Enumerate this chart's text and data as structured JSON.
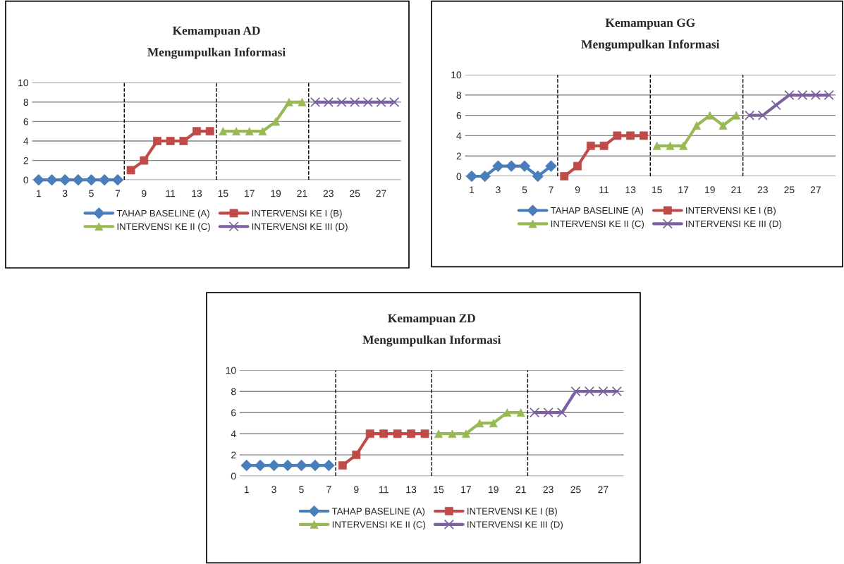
{
  "chart_data": [
    {
      "type": "line",
      "title": "Kemampuan AD",
      "subtitle": "Mengumpulkan Informasi",
      "x": [
        1,
        2,
        3,
        4,
        5,
        6,
        7,
        8,
        9,
        10,
        11,
        12,
        13,
        14,
        15,
        16,
        17,
        18,
        19,
        20,
        21,
        22,
        23,
        24,
        25,
        26,
        27,
        28
      ],
      "xlim": [
        0.5,
        28.5
      ],
      "xticks": [
        1,
        3,
        5,
        7,
        9,
        11,
        13,
        15,
        17,
        19,
        21,
        23,
        25,
        27
      ],
      "ylim": [
        0,
        10
      ],
      "yticks": [
        0,
        2,
        4,
        6,
        8,
        10
      ],
      "grid": "y",
      "legend": "bottom",
      "ref_lines": [
        {
          "axis": "x",
          "value": 7.5,
          "color": "#000000",
          "line_style": "dashed"
        },
        {
          "axis": "x",
          "value": 14.5,
          "color": "#000000",
          "line_style": "dashed"
        },
        {
          "axis": "x",
          "value": 21.5,
          "color": "#000000",
          "line_style": "dashed"
        }
      ],
      "series": [
        {
          "name": "TAHAP BASELINE (A)",
          "color": "#4a7ebb",
          "marker": "diamond",
          "values": [
            0,
            0,
            0,
            0,
            0,
            0,
            0,
            null,
            null,
            null,
            null,
            null,
            null,
            null,
            null,
            null,
            null,
            null,
            null,
            null,
            null,
            null,
            null,
            null,
            null,
            null,
            null,
            null
          ]
        },
        {
          "name": "INTERVENSI KE I (B)",
          "color": "#be4b48",
          "marker": "square",
          "values": [
            null,
            null,
            null,
            null,
            null,
            null,
            null,
            1,
            2,
            4,
            4,
            4,
            5,
            5,
            null,
            null,
            null,
            null,
            null,
            null,
            null,
            null,
            null,
            null,
            null,
            null,
            null,
            null
          ]
        },
        {
          "name": "INTERVENSI KE II (C)",
          "color": "#98b954",
          "marker": "triangle",
          "values": [
            null,
            null,
            null,
            null,
            null,
            null,
            null,
            null,
            null,
            null,
            null,
            null,
            null,
            null,
            5,
            5,
            5,
            5,
            6,
            8,
            8,
            null,
            null,
            null,
            null,
            null,
            null,
            null
          ]
        },
        {
          "name": "INTERVENSI KE III (D)",
          "color": "#7d60a0",
          "marker": "cross",
          "values": [
            null,
            null,
            null,
            null,
            null,
            null,
            null,
            null,
            null,
            null,
            null,
            null,
            null,
            null,
            null,
            null,
            null,
            null,
            null,
            null,
            null,
            8,
            8,
            8,
            8,
            8,
            8,
            8
          ]
        }
      ]
    },
    {
      "type": "line",
      "title": "Kemampuan GG",
      "subtitle": "Mengumpulkan Informasi",
      "x": [
        1,
        2,
        3,
        4,
        5,
        6,
        7,
        8,
        9,
        10,
        11,
        12,
        13,
        14,
        15,
        16,
        17,
        18,
        19,
        20,
        21,
        22,
        23,
        24,
        25,
        26,
        27,
        28
      ],
      "xlim": [
        0.5,
        28.5
      ],
      "xticks": [
        1,
        3,
        5,
        7,
        9,
        11,
        13,
        15,
        17,
        19,
        21,
        23,
        25,
        27
      ],
      "ylim": [
        0,
        10
      ],
      "yticks": [
        0,
        2,
        4,
        6,
        8,
        10
      ],
      "grid": "y",
      "legend": "bottom",
      "ref_lines": [
        {
          "axis": "x",
          "value": 7.5,
          "color": "#000000",
          "line_style": "dashed"
        },
        {
          "axis": "x",
          "value": 14.5,
          "color": "#000000",
          "line_style": "dashed"
        },
        {
          "axis": "x",
          "value": 21.5,
          "color": "#000000",
          "line_style": "dashed"
        }
      ],
      "series": [
        {
          "name": "TAHAP BASELINE (A)",
          "color": "#4a7ebb",
          "marker": "diamond",
          "values": [
            0,
            0,
            1,
            1,
            1,
            0,
            1,
            null,
            null,
            null,
            null,
            null,
            null,
            null,
            null,
            null,
            null,
            null,
            null,
            null,
            null,
            null,
            null,
            null,
            null,
            null,
            null,
            null
          ]
        },
        {
          "name": "INTERVENSI KE I (B)",
          "color": "#be4b48",
          "marker": "square",
          "values": [
            null,
            null,
            null,
            null,
            null,
            null,
            null,
            0,
            1,
            3,
            3,
            4,
            4,
            4,
            null,
            null,
            null,
            null,
            null,
            null,
            null,
            null,
            null,
            null,
            null,
            null,
            null,
            null
          ]
        },
        {
          "name": "INTERVENSI KE II (C)",
          "color": "#98b954",
          "marker": "triangle",
          "values": [
            null,
            null,
            null,
            null,
            null,
            null,
            null,
            null,
            null,
            null,
            null,
            null,
            null,
            null,
            3,
            3,
            3,
            5,
            6,
            5,
            6,
            null,
            null,
            null,
            null,
            null,
            null,
            null
          ]
        },
        {
          "name": "INTERVENSI KE III (D)",
          "color": "#7d60a0",
          "marker": "cross",
          "values": [
            null,
            null,
            null,
            null,
            null,
            null,
            null,
            null,
            null,
            null,
            null,
            null,
            null,
            null,
            null,
            null,
            null,
            null,
            null,
            null,
            null,
            6,
            6,
            7,
            8,
            8,
            8,
            8
          ]
        }
      ]
    },
    {
      "type": "line",
      "title": "Kemampuan ZD",
      "subtitle": "Mengumpulkan Informasi",
      "x": [
        1,
        2,
        3,
        4,
        5,
        6,
        7,
        8,
        9,
        10,
        11,
        12,
        13,
        14,
        15,
        16,
        17,
        18,
        19,
        20,
        21,
        22,
        23,
        24,
        25,
        26,
        27,
        28
      ],
      "xlim": [
        0.5,
        28.5
      ],
      "xticks": [
        1,
        3,
        5,
        7,
        9,
        11,
        13,
        15,
        17,
        19,
        21,
        23,
        25,
        27
      ],
      "ylim": [
        0,
        10
      ],
      "yticks": [
        0,
        2,
        4,
        6,
        8,
        10
      ],
      "grid": "y",
      "legend": "bottom",
      "ref_lines": [
        {
          "axis": "x",
          "value": 7.5,
          "color": "#000000",
          "line_style": "dashed"
        },
        {
          "axis": "x",
          "value": 14.5,
          "color": "#000000",
          "line_style": "dashed"
        },
        {
          "axis": "x",
          "value": 21.5,
          "color": "#000000",
          "line_style": "dashed"
        }
      ],
      "series": [
        {
          "name": "TAHAP BASELINE (A)",
          "color": "#4a7ebb",
          "marker": "diamond",
          "values": [
            1,
            1,
            1,
            1,
            1,
            1,
            1,
            null,
            null,
            null,
            null,
            null,
            null,
            null,
            null,
            null,
            null,
            null,
            null,
            null,
            null,
            null,
            null,
            null,
            null,
            null,
            null,
            null
          ]
        },
        {
          "name": "INTERVENSI KE I (B)",
          "color": "#be4b48",
          "marker": "square",
          "values": [
            null,
            null,
            null,
            null,
            null,
            null,
            null,
            1,
            2,
            4,
            4,
            4,
            4,
            4,
            null,
            null,
            null,
            null,
            null,
            null,
            null,
            null,
            null,
            null,
            null,
            null,
            null,
            null
          ]
        },
        {
          "name": "INTERVENSI KE II (C)",
          "color": "#98b954",
          "marker": "triangle",
          "values": [
            null,
            null,
            null,
            null,
            null,
            null,
            null,
            null,
            null,
            null,
            null,
            null,
            null,
            null,
            4,
            4,
            4,
            5,
            5,
            6,
            6,
            null,
            null,
            null,
            null,
            null,
            null,
            null
          ]
        },
        {
          "name": "INTERVENSI KE III (D)",
          "color": "#7d60a0",
          "marker": "cross",
          "values": [
            null,
            null,
            null,
            null,
            null,
            null,
            null,
            null,
            null,
            null,
            null,
            null,
            null,
            null,
            null,
            null,
            null,
            null,
            null,
            null,
            null,
            6,
            6,
            6,
            8,
            8,
            8,
            8
          ]
        }
      ]
    }
  ]
}
